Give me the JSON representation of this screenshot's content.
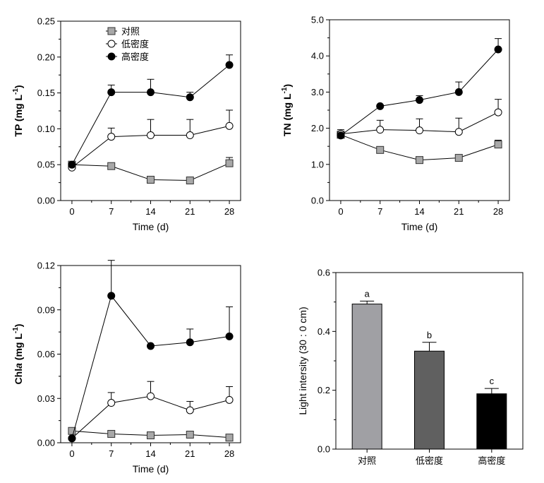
{
  "colors": {
    "control": "#a8a8a8",
    "low": "#ffffff",
    "high": "#000000",
    "bar_control": "#a0a0a4",
    "bar_low": "#606060",
    "bar_high": "#000000"
  },
  "legend": [
    "对照",
    "低密度",
    "高密度"
  ],
  "chart_data": [
    {
      "type": "line",
      "xlabel": "Time (d)",
      "ylabel": {
        "main": "TP (mg L",
        "sup": "-1",
        "close": ")"
      },
      "x": [
        0,
        7,
        14,
        21,
        28
      ],
      "xticks": [
        "0",
        "7",
        "14",
        "21",
        "28"
      ],
      "ylim": [
        0,
        0.25
      ],
      "yticks": [
        "0.00",
        "0.05",
        "0.10",
        "0.15",
        "0.20",
        "0.25"
      ],
      "series": [
        {
          "name": "对照",
          "marker": "square",
          "values": [
            0.05,
            0.048,
            0.029,
            0.028,
            0.052
          ],
          "errors": [
            null,
            null,
            null,
            null,
            0.008
          ]
        },
        {
          "name": "低密度",
          "marker": "open-circle",
          "values": [
            0.046,
            0.089,
            0.091,
            0.091,
            0.104
          ],
          "errors": [
            null,
            0.012,
            0.022,
            0.022,
            0.022
          ]
        },
        {
          "name": "高密度",
          "marker": "filled-circle",
          "values": [
            0.05,
            0.151,
            0.151,
            0.144,
            0.189
          ],
          "errors": [
            null,
            0.01,
            0.018,
            0.007,
            0.014
          ]
        }
      ]
    },
    {
      "type": "line",
      "xlabel": "Time (d)",
      "ylabel": {
        "main": "TN (mg L",
        "sup": "-1",
        "close": ")"
      },
      "x": [
        0,
        7,
        14,
        21,
        28
      ],
      "xticks": [
        "0",
        "7",
        "14",
        "21",
        "28"
      ],
      "ylim": [
        0,
        5
      ],
      "yticks": [
        "0.0",
        "1.0",
        "2.0",
        "3.0",
        "4.0",
        "5.0"
      ],
      "series": [
        {
          "name": "对照",
          "marker": "square",
          "values": [
            1.82,
            1.4,
            1.12,
            1.18,
            1.55
          ],
          "errors": [
            null,
            null,
            null,
            null,
            0.12
          ]
        },
        {
          "name": "低密度",
          "marker": "open-circle",
          "values": [
            1.84,
            1.96,
            1.94,
            1.9,
            2.44
          ],
          "errors": [
            0.12,
            0.26,
            0.32,
            0.38,
            0.36
          ]
        },
        {
          "name": "高密度",
          "marker": "filled-circle",
          "values": [
            1.8,
            2.61,
            2.78,
            3.0,
            4.18
          ],
          "errors": [
            null,
            null,
            0.12,
            0.28,
            0.3
          ]
        }
      ]
    },
    {
      "type": "line",
      "xlabel": "Time (d)",
      "ylabel": {
        "main": "Chl",
        "italic": "a",
        "rest": " (mg L",
        "sup": "-1",
        "close": ")"
      },
      "x": [
        0,
        7,
        14,
        21,
        28
      ],
      "xticks": [
        "0",
        "7",
        "14",
        "21",
        "28"
      ],
      "ylim": [
        0,
        0.12
      ],
      "yticks": [
        "0.00",
        "0.03",
        "0.06",
        "0.09",
        "0.12"
      ],
      "series": [
        {
          "name": "对照",
          "marker": "square",
          "values": [
            0.008,
            0.006,
            0.005,
            0.0055,
            0.0035
          ],
          "errors": [
            null,
            null,
            null,
            null,
            null
          ]
        },
        {
          "name": "低密度",
          "marker": "open-circle",
          "values": [
            0.003,
            0.027,
            0.0315,
            0.022,
            0.029
          ],
          "errors": [
            null,
            0.007,
            0.01,
            0.006,
            0.009
          ]
        },
        {
          "name": "高密度",
          "marker": "filled-circle",
          "values": [
            0.003,
            0.0995,
            0.0655,
            0.068,
            0.072
          ],
          "errors": [
            null,
            0.024,
            null,
            0.009,
            0.02
          ]
        }
      ]
    },
    {
      "type": "bar",
      "ylabel": "Light intersity (30 : 0 cm)",
      "categories": [
        "对照",
        "低密度",
        "高密度"
      ],
      "values": [
        0.493,
        0.333,
        0.188
      ],
      "errors": [
        0.01,
        0.03,
        0.018
      ],
      "labels": [
        "a",
        "b",
        "c"
      ],
      "ylim": [
        0,
        0.6
      ],
      "yticks": [
        "0.0",
        "0.2",
        "0.4",
        "0.6"
      ]
    }
  ]
}
